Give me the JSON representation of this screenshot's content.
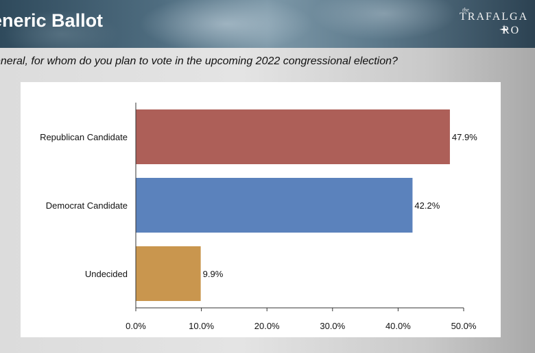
{
  "header": {
    "title": "eneric Ballot",
    "logo_small": "the",
    "logo_line1": "TRAFAL",
    "logo_line1_end": "GA",
    "logo_line2": "RO"
  },
  "question": "eneral, for whom do you plan to vote in the upcoming 2022 congressional election?",
  "chart_data": {
    "type": "bar",
    "orientation": "horizontal",
    "categories": [
      "Republican Candidate",
      "Democrat Candidate",
      "Undecided"
    ],
    "values": [
      47.9,
      42.2,
      9.9
    ],
    "value_labels": [
      "47.9%",
      "42.2%",
      "9.9%"
    ],
    "colors": [
      "#ad5f58",
      "#5b82bc",
      "#c9964e"
    ],
    "xlim": [
      0,
      50
    ],
    "xticks": [
      0,
      10,
      20,
      30,
      40,
      50
    ],
    "xtick_labels": [
      "0.0%",
      "10.0%",
      "20.0%",
      "30.0%",
      "40.0%",
      "50.0%"
    ],
    "grid": false,
    "legend": "none"
  }
}
